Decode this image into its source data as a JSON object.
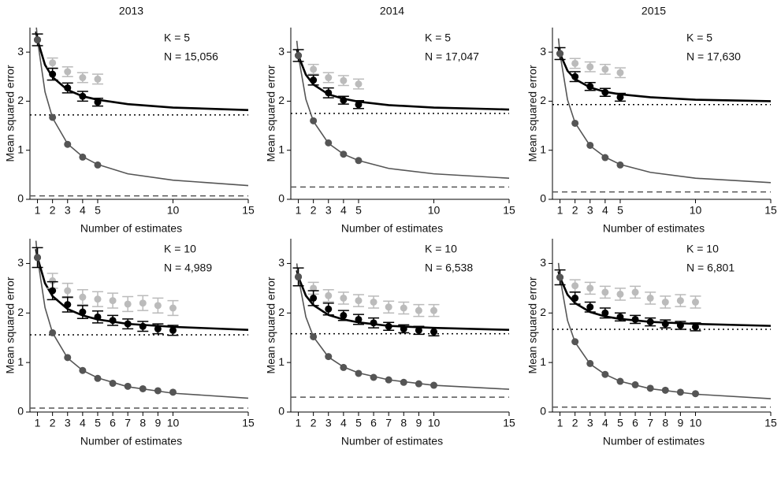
{
  "chart_data": [
    {
      "type": "scatter",
      "title": "2013",
      "annotations": [
        "K = 5",
        "N = 15,056"
      ],
      "x_label": "Number of estimates",
      "y_label": "Mean squared error",
      "xlim": [
        0.5,
        15
      ],
      "ylim": [
        0,
        3.5
      ],
      "xticks": [
        1,
        2,
        3,
        4,
        5,
        10,
        15
      ],
      "yticks": [
        0,
        1,
        2,
        3
      ],
      "reference_lines": [
        {
          "value": 1.72,
          "style": "dotted",
          "color": "#000000"
        },
        {
          "value": 0.07,
          "style": "dashed",
          "color": "#555555"
        }
      ],
      "series": [
        {
          "style": "curve",
          "color": "#000000",
          "x": [
            0.9,
            1,
            1.5,
            2,
            3,
            4,
            5,
            7,
            10,
            15
          ],
          "values": [
            3.42,
            3.25,
            2.74,
            2.49,
            2.23,
            2.1,
            2.03,
            1.94,
            1.87,
            1.82
          ]
        },
        {
          "style": "curve",
          "color": "#555555",
          "x": [
            0.9,
            1,
            1.5,
            2,
            3,
            4,
            5,
            7,
            10,
            15
          ],
          "values": [
            3.6,
            3.25,
            2.19,
            1.66,
            1.13,
            0.87,
            0.71,
            0.52,
            0.39,
            0.28
          ]
        },
        {
          "style": "points",
          "color": "#bbbbbb",
          "x": [
            2,
            3,
            4,
            5
          ],
          "values": [
            2.78,
            2.6,
            2.48,
            2.45
          ],
          "errors": [
            0.1,
            0.1,
            0.1,
            0.1
          ]
        },
        {
          "style": "points",
          "color": "#000000",
          "x": [
            1,
            2,
            3,
            4,
            5
          ],
          "values": [
            3.25,
            2.55,
            2.27,
            2.1,
            1.98
          ],
          "errors": [
            0.12,
            0.12,
            0.1,
            0.1,
            0.08
          ]
        },
        {
          "style": "points",
          "color": "#555555",
          "x": [
            1,
            2,
            3,
            4,
            5
          ],
          "values": [
            3.25,
            1.67,
            1.12,
            0.86,
            0.7
          ]
        }
      ]
    },
    {
      "type": "scatter",
      "title": "2014",
      "annotations": [
        "K = 5",
        "N = 17,047"
      ],
      "x_label": "Number of estimates",
      "y_label": "Mean squared error",
      "xlim": [
        0.5,
        15
      ],
      "ylim": [
        0,
        3.5
      ],
      "xticks": [
        1,
        2,
        3,
        4,
        5,
        10,
        15
      ],
      "yticks": [
        0,
        1,
        2,
        3
      ],
      "reference_lines": [
        {
          "value": 1.75,
          "style": "dotted",
          "color": "#000000"
        },
        {
          "value": 0.25,
          "style": "dashed",
          "color": "#555555"
        }
      ],
      "series": [
        {
          "style": "curve",
          "color": "#000000",
          "x": [
            0.9,
            1,
            1.5,
            2,
            3,
            4,
            5,
            7,
            10,
            15
          ],
          "values": [
            3.06,
            2.93,
            2.54,
            2.34,
            2.14,
            2.05,
            1.99,
            1.92,
            1.87,
            1.83
          ]
        },
        {
          "style": "curve",
          "color": "#555555",
          "x": [
            0.9,
            1,
            1.5,
            2,
            3,
            4,
            5,
            7,
            10,
            15
          ],
          "values": [
            3.23,
            2.93,
            2.04,
            1.59,
            1.14,
            0.92,
            0.79,
            0.63,
            0.52,
            0.43
          ]
        },
        {
          "style": "points",
          "color": "#bbbbbb",
          "x": [
            2,
            3,
            4,
            5
          ],
          "values": [
            2.65,
            2.48,
            2.42,
            2.35
          ],
          "errors": [
            0.1,
            0.1,
            0.1,
            0.1
          ]
        },
        {
          "style": "points",
          "color": "#000000",
          "x": [
            1,
            2,
            3,
            4,
            5
          ],
          "values": [
            2.93,
            2.43,
            2.17,
            2.02,
            1.93
          ],
          "errors": [
            0.12,
            0.1,
            0.1,
            0.08,
            0.08
          ]
        },
        {
          "style": "points",
          "color": "#555555",
          "x": [
            1,
            2,
            3,
            4,
            5
          ],
          "values": [
            2.93,
            1.6,
            1.15,
            0.92,
            0.79
          ]
        }
      ]
    },
    {
      "type": "scatter",
      "title": "2015",
      "annotations": [
        "K = 5",
        "N = 17,630"
      ],
      "x_label": "Number of estimates",
      "y_label": "Mean squared error",
      "xlim": [
        0.5,
        15
      ],
      "ylim": [
        0,
        3.5
      ],
      "xticks": [
        1,
        2,
        3,
        4,
        5,
        10,
        15
      ],
      "yticks": [
        0,
        1,
        2,
        3
      ],
      "reference_lines": [
        {
          "value": 1.93,
          "style": "dotted",
          "color": "#000000"
        },
        {
          "value": 0.15,
          "style": "dashed",
          "color": "#555555"
        }
      ],
      "series": [
        {
          "style": "curve",
          "color": "#000000",
          "x": [
            0.9,
            1,
            1.5,
            2,
            3,
            4,
            5,
            7,
            10,
            15
          ],
          "values": [
            3.09,
            2.97,
            2.62,
            2.45,
            2.28,
            2.19,
            2.14,
            2.08,
            2.03,
            2.0
          ]
        },
        {
          "style": "curve",
          "color": "#555555",
          "x": [
            0.9,
            1,
            1.5,
            2,
            3,
            4,
            5,
            7,
            10,
            15
          ],
          "values": [
            3.28,
            2.97,
            2.03,
            1.56,
            1.09,
            0.86,
            0.71,
            0.55,
            0.43,
            0.34
          ]
        },
        {
          "style": "points",
          "color": "#bbbbbb",
          "x": [
            2,
            3,
            4,
            5
          ],
          "values": [
            2.77,
            2.7,
            2.65,
            2.58
          ],
          "errors": [
            0.1,
            0.1,
            0.1,
            0.1
          ]
        },
        {
          "style": "points",
          "color": "#000000",
          "x": [
            1,
            2,
            3,
            4,
            5
          ],
          "values": [
            2.97,
            2.5,
            2.3,
            2.18,
            2.08
          ],
          "errors": [
            0.12,
            0.1,
            0.08,
            0.08,
            0.08
          ]
        },
        {
          "style": "points",
          "color": "#555555",
          "x": [
            1,
            2,
            3,
            4,
            5
          ],
          "values": [
            2.97,
            1.55,
            1.1,
            0.85,
            0.7
          ]
        }
      ]
    },
    {
      "type": "scatter",
      "annotations": [
        "K = 10",
        "N = 4,989"
      ],
      "x_label": "Number of estimates",
      "y_label": "Mean squared error",
      "xlim": [
        0.5,
        15
      ],
      "ylim": [
        0,
        3.5
      ],
      "xticks": [
        1,
        2,
        3,
        4,
        5,
        6,
        7,
        8,
        9,
        10,
        15
      ],
      "yticks": [
        0,
        1,
        2,
        3
      ],
      "reference_lines": [
        {
          "value": 1.56,
          "style": "dotted",
          "color": "#000000"
        },
        {
          "value": 0.08,
          "style": "dashed",
          "color": "#555555"
        }
      ],
      "series": [
        {
          "style": "curve",
          "color": "#000000",
          "x": [
            0.9,
            1,
            1.5,
            2,
            3,
            4,
            5,
            7,
            10,
            15
          ],
          "values": [
            3.29,
            3.12,
            2.6,
            2.34,
            2.08,
            1.95,
            1.87,
            1.78,
            1.72,
            1.66
          ]
        },
        {
          "style": "curve",
          "color": "#555555",
          "x": [
            0.9,
            1,
            1.5,
            2,
            3,
            4,
            5,
            7,
            10,
            15
          ],
          "values": [
            3.46,
            3.12,
            2.11,
            1.6,
            1.09,
            0.84,
            0.69,
            0.51,
            0.38,
            0.28
          ]
        },
        {
          "style": "points",
          "color": "#bbbbbb",
          "x": [
            2,
            3,
            4,
            5,
            6,
            7,
            8,
            9,
            10
          ],
          "values": [
            2.65,
            2.45,
            2.32,
            2.28,
            2.25,
            2.18,
            2.2,
            2.15,
            2.1
          ],
          "errors": [
            0.15,
            0.15,
            0.15,
            0.15,
            0.15,
            0.15,
            0.15,
            0.15,
            0.15
          ]
        },
        {
          "style": "points",
          "color": "#000000",
          "x": [
            1,
            2,
            3,
            4,
            5,
            6,
            7,
            8,
            9,
            10
          ],
          "values": [
            3.12,
            2.45,
            2.17,
            2.02,
            1.92,
            1.85,
            1.78,
            1.73,
            1.68,
            1.65
          ],
          "errors": [
            0.2,
            0.18,
            0.15,
            0.13,
            0.12,
            0.1,
            0.1,
            0.1,
            0.1,
            0.1
          ]
        },
        {
          "style": "points",
          "color": "#555555",
          "x": [
            1,
            2,
            3,
            4,
            5,
            6,
            7,
            8,
            9,
            10
          ],
          "values": [
            3.12,
            1.6,
            1.1,
            0.84,
            0.68,
            0.58,
            0.52,
            0.47,
            0.43,
            0.4
          ]
        }
      ]
    },
    {
      "type": "scatter",
      "annotations": [
        "K = 10",
        "N = 6,538"
      ],
      "x_label": "Number of estimates",
      "y_label": "Mean squared error",
      "xlim": [
        0.5,
        15
      ],
      "ylim": [
        0,
        3.5
      ],
      "xticks": [
        1,
        2,
        3,
        4,
        5,
        6,
        7,
        8,
        9,
        10,
        15
      ],
      "yticks": [
        0,
        1,
        2,
        3
      ],
      "reference_lines": [
        {
          "value": 1.58,
          "style": "dotted",
          "color": "#000000"
        },
        {
          "value": 0.3,
          "style": "dashed",
          "color": "#555555"
        }
      ],
      "series": [
        {
          "style": "curve",
          "color": "#000000",
          "x": [
            0.9,
            1,
            1.5,
            2,
            3,
            4,
            5,
            7,
            10,
            15
          ],
          "values": [
            2.86,
            2.73,
            2.35,
            2.16,
            1.96,
            1.87,
            1.81,
            1.74,
            1.7,
            1.66
          ]
        },
        {
          "style": "curve",
          "color": "#555555",
          "x": [
            0.9,
            1,
            1.5,
            2,
            3,
            4,
            5,
            7,
            10,
            15
          ],
          "values": [
            3.0,
            2.73,
            1.92,
            1.52,
            1.11,
            0.91,
            0.79,
            0.65,
            0.54,
            0.46
          ]
        },
        {
          "style": "points",
          "color": "#bbbbbb",
          "x": [
            2,
            3,
            4,
            5,
            6,
            7,
            8,
            9,
            10
          ],
          "values": [
            2.5,
            2.35,
            2.3,
            2.25,
            2.22,
            2.12,
            2.1,
            2.05,
            2.05
          ],
          "errors": [
            0.12,
            0.12,
            0.12,
            0.12,
            0.12,
            0.12,
            0.12,
            0.12,
            0.12
          ]
        },
        {
          "style": "points",
          "color": "#000000",
          "x": [
            1,
            2,
            3,
            4,
            5,
            6,
            7,
            8,
            9,
            10
          ],
          "values": [
            2.73,
            2.3,
            2.08,
            1.95,
            1.87,
            1.8,
            1.73,
            1.68,
            1.65,
            1.62
          ],
          "errors": [
            0.18,
            0.15,
            0.12,
            0.1,
            0.1,
            0.1,
            0.08,
            0.08,
            0.08,
            0.08
          ]
        },
        {
          "style": "points",
          "color": "#555555",
          "x": [
            1,
            2,
            3,
            4,
            5,
            6,
            7,
            8,
            9,
            10
          ],
          "values": [
            2.73,
            1.52,
            1.12,
            0.9,
            0.78,
            0.7,
            0.65,
            0.6,
            0.57,
            0.54
          ]
        }
      ]
    },
    {
      "type": "scatter",
      "annotations": [
        "K = 10",
        "N = 6,801"
      ],
      "x_label": "Number of estimates",
      "y_label": "Mean squared error",
      "xlim": [
        0.5,
        15
      ],
      "ylim": [
        0,
        3.5
      ],
      "xticks": [
        1,
        2,
        3,
        4,
        5,
        6,
        7,
        8,
        9,
        10,
        15
      ],
      "yticks": [
        0,
        1,
        2,
        3
      ],
      "reference_lines": [
        {
          "value": 1.67,
          "style": "dotted",
          "color": "#000000"
        },
        {
          "value": 0.1,
          "style": "dashed",
          "color": "#555555"
        }
      ],
      "series": [
        {
          "style": "curve",
          "color": "#000000",
          "x": [
            0.9,
            1,
            1.5,
            2,
            3,
            4,
            5,
            7,
            10,
            15
          ],
          "values": [
            2.84,
            2.72,
            2.37,
            2.2,
            2.02,
            1.93,
            1.88,
            1.82,
            1.78,
            1.74
          ]
        },
        {
          "style": "curve",
          "color": "#555555",
          "x": [
            0.9,
            1,
            1.5,
            2,
            3,
            4,
            5,
            7,
            10,
            15
          ],
          "values": [
            3.01,
            2.72,
            1.85,
            1.41,
            0.97,
            0.76,
            0.62,
            0.47,
            0.36,
            0.27
          ]
        },
        {
          "style": "points",
          "color": "#bbbbbb",
          "x": [
            2,
            3,
            4,
            5,
            6,
            7,
            8,
            9,
            10
          ],
          "values": [
            2.55,
            2.5,
            2.42,
            2.38,
            2.42,
            2.3,
            2.22,
            2.25,
            2.22
          ],
          "errors": [
            0.12,
            0.12,
            0.12,
            0.12,
            0.12,
            0.12,
            0.12,
            0.12,
            0.12
          ]
        },
        {
          "style": "points",
          "color": "#000000",
          "x": [
            1,
            2,
            3,
            4,
            5,
            6,
            7,
            8,
            9,
            10
          ],
          "values": [
            2.72,
            2.3,
            2.12,
            2.0,
            1.92,
            1.87,
            1.82,
            1.78,
            1.75,
            1.72
          ],
          "errors": [
            0.15,
            0.12,
            0.1,
            0.1,
            0.08,
            0.08,
            0.08,
            0.08,
            0.08,
            0.08
          ]
        },
        {
          "style": "points",
          "color": "#555555",
          "x": [
            1,
            2,
            3,
            4,
            5,
            6,
            7,
            8,
            9,
            10
          ],
          "values": [
            2.72,
            1.42,
            0.98,
            0.76,
            0.62,
            0.55,
            0.48,
            0.44,
            0.4,
            0.37
          ]
        }
      ]
    }
  ]
}
